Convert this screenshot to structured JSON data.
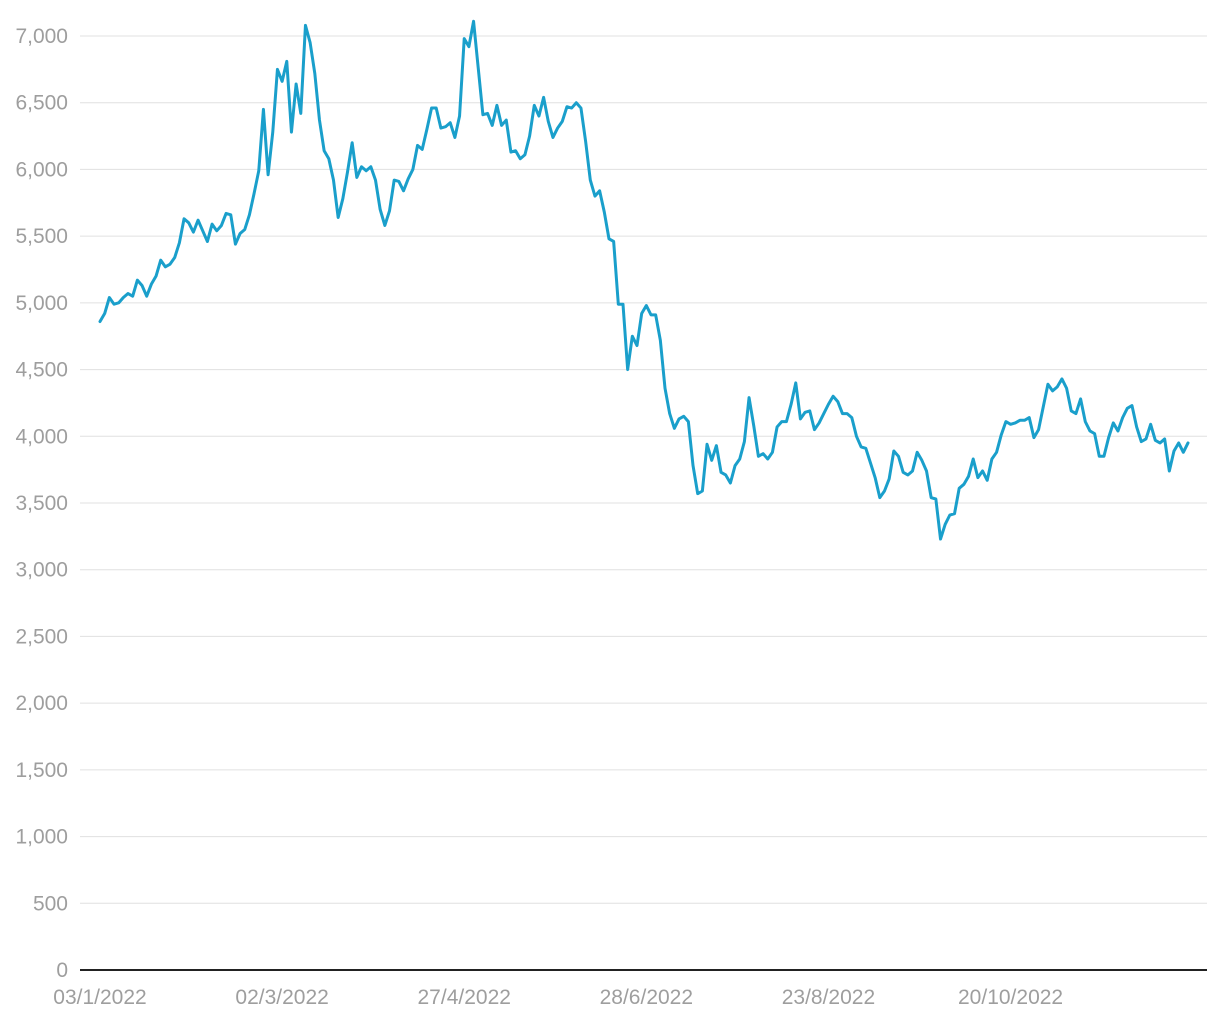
{
  "chart_data": {
    "type": "line",
    "title": "",
    "xlabel": "",
    "ylabel": "",
    "ylim": [
      0,
      7000
    ],
    "grid": true,
    "legend": "none",
    "y_ticks": [
      {
        "value": 0,
        "label": "0"
      },
      {
        "value": 500,
        "label": "500"
      },
      {
        "value": 1000,
        "label": "1,000"
      },
      {
        "value": 1500,
        "label": "1,500"
      },
      {
        "value": 2000,
        "label": "2,000"
      },
      {
        "value": 2500,
        "label": "2,500"
      },
      {
        "value": 3000,
        "label": "3,000"
      },
      {
        "value": 3500,
        "label": "3,500"
      },
      {
        "value": 4000,
        "label": "4,000"
      },
      {
        "value": 4500,
        "label": "4,500"
      },
      {
        "value": 5000,
        "label": "5,000"
      },
      {
        "value": 5500,
        "label": "5,500"
      },
      {
        "value": 6000,
        "label": "6,000"
      },
      {
        "value": 6500,
        "label": "6,500"
      },
      {
        "value": 7000,
        "label": "7,000"
      }
    ],
    "x_ticks": [
      {
        "index": 0,
        "label": "03/1/2022"
      },
      {
        "index": 39,
        "label": "02/3/2022"
      },
      {
        "index": 78,
        "label": "27/4/2022"
      },
      {
        "index": 117,
        "label": "28/6/2022"
      },
      {
        "index": 156,
        "label": "23/8/2022"
      },
      {
        "index": 195,
        "label": "20/10/2022"
      }
    ],
    "series": [
      {
        "color": "#1a9fcb",
        "values": [
          4860,
          4920,
          5040,
          4990,
          5000,
          5040,
          5070,
          5050,
          5170,
          5130,
          5050,
          5140,
          5200,
          5320,
          5270,
          5290,
          5340,
          5450,
          5630,
          5600,
          5530,
          5620,
          5540,
          5460,
          5590,
          5540,
          5580,
          5670,
          5660,
          5440,
          5520,
          5550,
          5660,
          5820,
          5990,
          6450,
          5960,
          6280,
          6750,
          6660,
          6810,
          6280,
          6640,
          6420,
          7080,
          6950,
          6720,
          6370,
          6140,
          6080,
          5920,
          5640,
          5780,
          5980,
          6200,
          5940,
          6020,
          5990,
          6020,
          5920,
          5700,
          5580,
          5690,
          5920,
          5910,
          5840,
          5930,
          6000,
          6180,
          6150,
          6300,
          6460,
          6460,
          6310,
          6320,
          6350,
          6240,
          6400,
          6980,
          6920,
          7110,
          6760,
          6410,
          6420,
          6330,
          6480,
          6330,
          6370,
          6130,
          6140,
          6080,
          6110,
          6250,
          6480,
          6400,
          6540,
          6360,
          6240,
          6310,
          6360,
          6470,
          6460,
          6500,
          6460,
          6210,
          5920,
          5800,
          5840,
          5680,
          5480,
          5460,
          4990,
          4990,
          4500,
          4750,
          4680,
          4920,
          4980,
          4910,
          4910,
          4720,
          4360,
          4170,
          4060,
          4130,
          4150,
          4110,
          3780,
          3570,
          3590,
          3940,
          3820,
          3930,
          3730,
          3710,
          3650,
          3780,
          3830,
          3960,
          4290,
          4080,
          3850,
          3870,
          3830,
          3880,
          4070,
          4110,
          4110,
          4240,
          4400,
          4130,
          4180,
          4190,
          4050,
          4100,
          4170,
          4240,
          4300,
          4260,
          4170,
          4170,
          4140,
          4000,
          3920,
          3910,
          3800,
          3690,
          3540,
          3590,
          3680,
          3890,
          3850,
          3730,
          3710,
          3740,
          3880,
          3820,
          3740,
          3540,
          3530,
          3230,
          3340,
          3410,
          3420,
          3610,
          3640,
          3700,
          3830,
          3690,
          3740,
          3670,
          3830,
          3880,
          4010,
          4110,
          4090,
          4100,
          4120,
          4120,
          4140,
          3990,
          4050,
          4220,
          4390,
          4340,
          4370,
          4430,
          4360,
          4190,
          4170,
          4280,
          4110,
          4040,
          4020,
          3850,
          3850,
          3990,
          4100,
          4040,
          4140,
          4210,
          4230,
          4070,
          3960,
          3980,
          4090,
          3970,
          3950,
          3980,
          3740,
          3890,
          3950,
          3880,
          3950
        ]
      }
    ]
  }
}
